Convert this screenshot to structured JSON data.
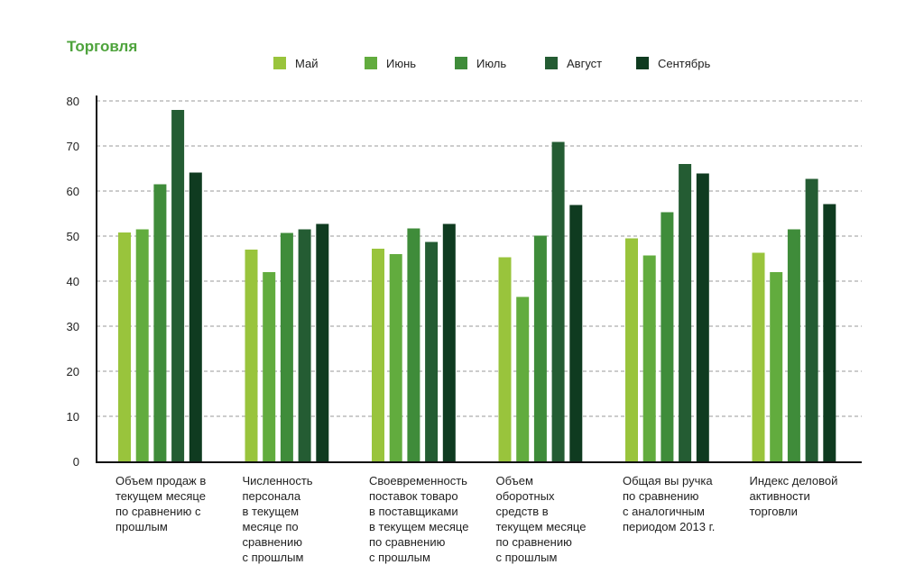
{
  "chart_data": {
    "type": "bar",
    "title": "Торговля",
    "xlabel": "",
    "ylabel": "",
    "ylim": [
      0,
      80
    ],
    "yticks": [
      "0",
      "10",
      "20",
      "30",
      "40",
      "50",
      "60",
      "70",
      "80"
    ],
    "grid": true,
    "legend_position": "top",
    "categories": [
      [
        "Объем продаж в",
        "текущем месяце",
        "по сравнению с",
        "прошлым"
      ],
      [
        "Численность",
        "персонала",
        "в текущем",
        "месяце по",
        "сравнению",
        "с прошлым"
      ],
      [
        "Своевременность",
        "поставок товаро",
        "в поставщиками",
        "в текущем месяце",
        "по сравнению",
        "с прошлым"
      ],
      [
        "Объем",
        "оборотных",
        "средств в",
        "текущем месяце",
        "по сравнению",
        "с прошлым"
      ],
      [
        "Общая вы ручка",
        "по сравнению",
        "с аналогичным",
        "периодом 2013 г."
      ],
      [
        "Индекс деловой",
        "активности",
        "торговли"
      ]
    ],
    "series": [
      {
        "name": "Май",
        "color": "#99c43c",
        "values": [
          50.8,
          47.0,
          47.2,
          45.3,
          49.5,
          46.3
        ]
      },
      {
        "name": "Июнь",
        "color": "#62ac3e",
        "values": [
          51.5,
          42.0,
          46.0,
          36.5,
          45.7,
          42.0
        ]
      },
      {
        "name": "Июль",
        "color": "#3f8c3a",
        "values": [
          61.5,
          50.7,
          51.7,
          50.1,
          55.3,
          51.5
        ]
      },
      {
        "name": "Август",
        "color": "#245c33",
        "values": [
          78.0,
          51.5,
          48.7,
          70.9,
          66.0,
          62.7
        ]
      },
      {
        "name": "Сентябрь",
        "color": "#0f3b20",
        "values": [
          64.1,
          52.7,
          52.7,
          56.9,
          63.9,
          57.1
        ]
      }
    ]
  },
  "colors": {
    "title": "#4ea33c",
    "axis": "#111111",
    "grid": "#9a9a9a"
  }
}
